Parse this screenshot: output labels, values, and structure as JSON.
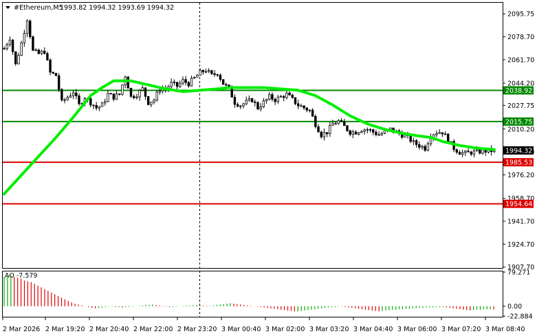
{
  "header": {
    "symbol": "#Ethereum,M5",
    "ohlc": "1993.82 1994.32 1993.69 1994.32"
  },
  "indicator": {
    "label": "AO -7.579"
  },
  "colors": {
    "background": "#ffffff",
    "candle": "#000000",
    "moving_average": "#00ee00",
    "resistance_line": "#008800",
    "support_line": "#dd0000",
    "current_price_tag": "#000000",
    "ao_up": "#00aa00",
    "ao_down": "#dd0000"
  },
  "chart_data": [
    {
      "type": "candlestick",
      "title": "#Ethereum,M5",
      "ylim": [
        1907.0,
        2104.0
      ],
      "y_ticks": [
        "2095.75",
        "2078.70",
        "2061.70",
        "2044.20",
        "2027.75",
        "2010.20",
        "1993.20",
        "1976.20",
        "1958.70",
        "1941.70",
        "1924.70",
        "1907.70"
      ],
      "x_ticks": [
        "2 Mar 2026",
        "2 Mar 19:20",
        "2 Mar 20:40",
        "2 Mar 22:00",
        "2 Mar 23:20",
        "3 Mar 00:40",
        "3 Mar 02:00",
        "3 Mar 03:20",
        "3 Mar 04:40",
        "3 Mar 06:00",
        "3 Mar 07:20",
        "3 Mar 08:40"
      ],
      "price_path": [
        [
          0,
          2070
        ],
        [
          2,
          2078
        ],
        [
          4,
          2058
        ],
        [
          6,
          2074
        ],
        [
          8,
          2092
        ],
        [
          10,
          2068
        ],
        [
          12,
          2066
        ],
        [
          14,
          2068
        ],
        [
          16,
          2052
        ],
        [
          18,
          2050
        ],
        [
          20,
          2030
        ],
        [
          22,
          2034
        ],
        [
          24,
          2038
        ],
        [
          26,
          2028
        ],
        [
          28,
          2034
        ],
        [
          30,
          2030
        ],
        [
          32,
          2026
        ],
        [
          34,
          2028
        ],
        [
          36,
          2036
        ],
        [
          38,
          2034
        ],
        [
          40,
          2036
        ],
        [
          42,
          2050
        ],
        [
          44,
          2034
        ],
        [
          46,
          2036
        ],
        [
          48,
          2040
        ],
        [
          50,
          2030
        ],
        [
          52,
          2032
        ],
        [
          54,
          2040
        ],
        [
          56,
          2040
        ],
        [
          58,
          2044
        ],
        [
          60,
          2042
        ],
        [
          62,
          2046
        ],
        [
          64,
          2044
        ],
        [
          66,
          2048
        ],
        [
          68,
          2052
        ],
        [
          70,
          2054
        ],
        [
          72,
          2050
        ],
        [
          74,
          2052
        ],
        [
          76,
          2044
        ],
        [
          78,
          2040
        ],
        [
          80,
          2030
        ],
        [
          82,
          2028
        ],
        [
          84,
          2030
        ],
        [
          86,
          2032
        ],
        [
          88,
          2026
        ],
        [
          90,
          2030
        ],
        [
          92,
          2034
        ],
        [
          94,
          2032
        ],
        [
          96,
          2034
        ],
        [
          98,
          2036
        ],
        [
          100,
          2032
        ],
        [
          102,
          2028
        ],
        [
          104,
          2026
        ],
        [
          106,
          2024
        ],
        [
          108,
          2014
        ],
        [
          110,
          2006
        ],
        [
          112,
          2008
        ],
        [
          114,
          2014
        ],
        [
          116,
          2016
        ],
        [
          118,
          2012
        ],
        [
          120,
          2008
        ],
        [
          122,
          2008
        ],
        [
          124,
          2010
        ],
        [
          126,
          2010
        ],
        [
          128,
          2008
        ],
        [
          130,
          2006
        ],
        [
          132,
          2008
        ],
        [
          134,
          2010
        ],
        [
          136,
          2008
        ],
        [
          138,
          2006
        ],
        [
          140,
          2004
        ],
        [
          142,
          2000
        ],
        [
          144,
          1998
        ],
        [
          146,
          1996
        ],
        [
          148,
          2006
        ],
        [
          150,
          2008
        ],
        [
          152,
          2008
        ],
        [
          154,
          2002
        ],
        [
          156,
          1996
        ],
        [
          158,
          1993
        ],
        [
          160,
          1992
        ],
        [
          162,
          1993
        ],
        [
          164,
          1993
        ],
        [
          166,
          1994
        ],
        [
          168,
          1994
        ],
        [
          170,
          1994.32
        ]
      ],
      "moving_average": [
        [
          0,
          1962
        ],
        [
          6,
          1976
        ],
        [
          12,
          1990
        ],
        [
          18,
          2004
        ],
        [
          24,
          2019
        ],
        [
          30,
          2035
        ],
        [
          34,
          2041
        ],
        [
          38,
          2046
        ],
        [
          44,
          2046
        ],
        [
          50,
          2043
        ],
        [
          56,
          2040
        ],
        [
          62,
          2038
        ],
        [
          68,
          2039
        ],
        [
          74,
          2040
        ],
        [
          78,
          2041
        ],
        [
          84,
          2041
        ],
        [
          90,
          2041
        ],
        [
          96,
          2040
        ],
        [
          102,
          2039
        ],
        [
          108,
          2035
        ],
        [
          114,
          2028
        ],
        [
          120,
          2020
        ],
        [
          126,
          2014
        ],
        [
          132,
          2010
        ],
        [
          138,
          2007
        ],
        [
          144,
          2005
        ],
        [
          148,
          2004
        ],
        [
          152,
          2001
        ],
        [
          158,
          1998
        ],
        [
          164,
          1996
        ],
        [
          170,
          1995
        ]
      ],
      "levels": [
        {
          "value": 2038.92,
          "label": "2038.92",
          "kind": "resistance"
        },
        {
          "value": 2015.75,
          "label": "2015.75",
          "kind": "resistance"
        },
        {
          "value": 1985.53,
          "label": "1985.53",
          "kind": "support"
        },
        {
          "value": 1954.64,
          "label": "1954.64",
          "kind": "support"
        }
      ],
      "current_price": {
        "value": 1994.32,
        "label": "1994.32"
      },
      "vertical_marker_time": "3 Mar 00:00"
    },
    {
      "type": "bar",
      "title": "AO -7.579",
      "ylim": [
        -22.884,
        79.271
      ],
      "y_ticks": [
        "79.271",
        "0.00",
        "-22.884"
      ],
      "values": [
        68,
        70,
        72,
        68,
        66,
        64,
        60,
        58,
        56,
        52,
        48,
        44,
        40,
        36,
        32,
        28,
        24,
        20,
        16,
        12,
        9,
        6,
        4,
        2,
        0,
        -2,
        -4,
        -5,
        -4,
        -3,
        -2,
        -1,
        -1,
        -2,
        -2,
        -3,
        -2,
        -2,
        -1,
        0,
        1,
        2,
        3,
        3,
        4,
        3,
        2,
        1,
        -1,
        -2,
        -2,
        -1,
        0,
        1,
        2,
        2,
        3,
        3,
        2,
        2,
        1,
        1,
        2,
        3,
        4,
        5,
        6,
        7,
        6,
        5,
        4,
        3,
        2,
        1,
        0,
        -1,
        -2,
        -3,
        -4,
        -5,
        -6,
        -7,
        -8,
        -9,
        -10,
        -11,
        -12,
        -12,
        -11,
        -10,
        -9,
        -8,
        -7,
        -6,
        -5,
        -4,
        -3,
        -2,
        -2,
        -1,
        -1,
        -2,
        -3,
        -4,
        -5,
        -6,
        -7,
        -8,
        -9,
        -10,
        -11,
        -12,
        -11,
        -10,
        -9,
        -8,
        -8,
        -7,
        -7,
        -6,
        -6,
        -5,
        -5,
        -4,
        -4,
        -3,
        -3,
        -3,
        -2,
        -2,
        -2,
        -3,
        -4,
        -5,
        -6,
        -7,
        -8,
        -9,
        -10,
        -9,
        -8,
        -8,
        -7,
        -7,
        -7,
        -7.579
      ]
    }
  ]
}
